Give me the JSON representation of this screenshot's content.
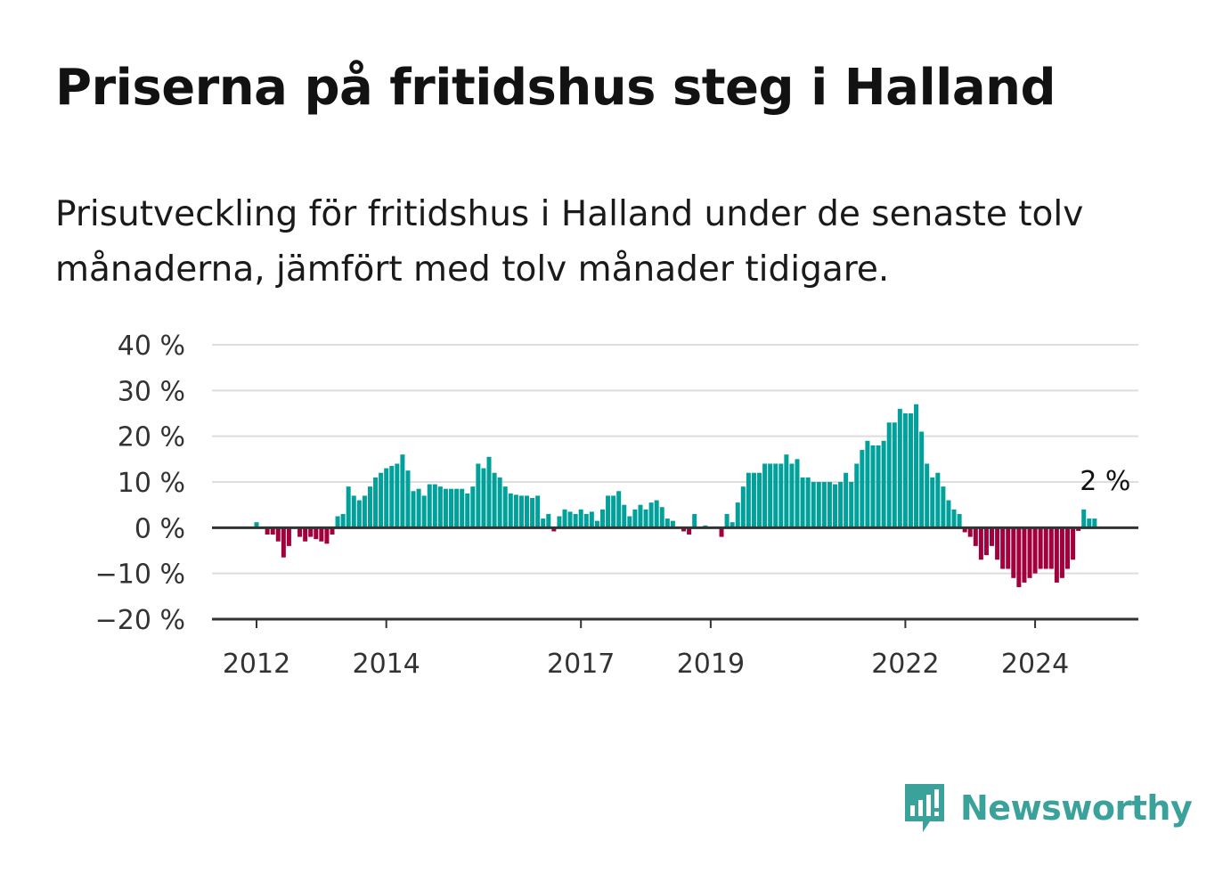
{
  "title": "Priserna på fritidshus steg i Halland",
  "subtitle": "Prisutveckling för fritidshus i Halland under de senaste tolv månaderna, jämfört med tolv månader tidigare.",
  "brand": {
    "name": "Newsworthy",
    "icon": "newsworthy-logo-icon",
    "color": "#3aa19b"
  },
  "colors": {
    "positive": "#00a19a",
    "negative": "#a1003d",
    "grid": "#dddddd",
    "axis": "#333333"
  },
  "chart_data": {
    "type": "bar",
    "title": "Priserna på fritidshus steg i Halland",
    "ylim": [
      -20,
      40
    ],
    "yticks": [
      -20,
      -10,
      0,
      10,
      20,
      30,
      40
    ],
    "ytick_labels": [
      "−20 %",
      "−10 %",
      "0 %",
      "10 %",
      "20 %",
      "30 %",
      "40 %"
    ],
    "xticks": [
      {
        "label": "2012",
        "date": "2012-01"
      },
      {
        "label": "2014",
        "date": "2014-01"
      },
      {
        "label": "2017",
        "date": "2017-01"
      },
      {
        "label": "2019",
        "date": "2019-01"
      },
      {
        "label": "2022",
        "date": "2022-01"
      },
      {
        "label": "2024",
        "date": "2024-01"
      }
    ],
    "grid": true,
    "annotation": {
      "text": "2 %",
      "date": "2024-12"
    },
    "series": [
      {
        "start": "2012-01",
        "frequency": "monthly",
        "values": [
          1.2,
          0,
          -1.5,
          -1.5,
          -3,
          -6.5,
          -4,
          0,
          -2,
          -3,
          -2,
          -2.5,
          -3,
          -3.5,
          -1.5,
          2.5,
          3,
          9,
          7,
          6,
          7,
          9,
          11,
          12,
          13,
          13.5,
          14,
          16,
          12.5,
          8,
          8.5,
          7,
          9.5,
          9.5,
          9,
          8.5,
          8.5,
          8.5,
          8.5,
          7.5,
          9,
          14,
          13,
          15.5,
          12,
          11,
          9,
          7.5,
          7.2,
          7,
          7,
          6.5,
          7,
          2,
          3,
          -0.8,
          2.5,
          4,
          3.5,
          3,
          4,
          3,
          3.5,
          1.5,
          4,
          7,
          7,
          8,
          5,
          2.5,
          4,
          5,
          4,
          5.5,
          6,
          4.5,
          2,
          1.5,
          0,
          -0.8,
          -1.5,
          3,
          0,
          0.5,
          0,
          0,
          -2,
          3,
          1.2,
          5.5,
          9,
          12,
          12,
          12,
          14,
          14,
          14,
          14,
          16,
          14,
          15,
          11,
          11,
          10,
          10,
          10,
          10,
          9.5,
          10,
          12,
          10,
          14,
          17,
          19,
          18,
          18,
          19,
          23,
          23,
          26,
          25,
          25,
          27,
          21,
          14,
          11,
          12,
          9,
          6,
          4,
          3,
          -1,
          -2,
          -4,
          -7,
          -6,
          -4,
          -7,
          -9,
          -9,
          -11,
          -13,
          -12,
          -11,
          -10,
          -9,
          -9,
          -9,
          -12,
          -11,
          -9,
          -7,
          -0.7,
          4,
          2,
          2
        ]
      }
    ]
  }
}
